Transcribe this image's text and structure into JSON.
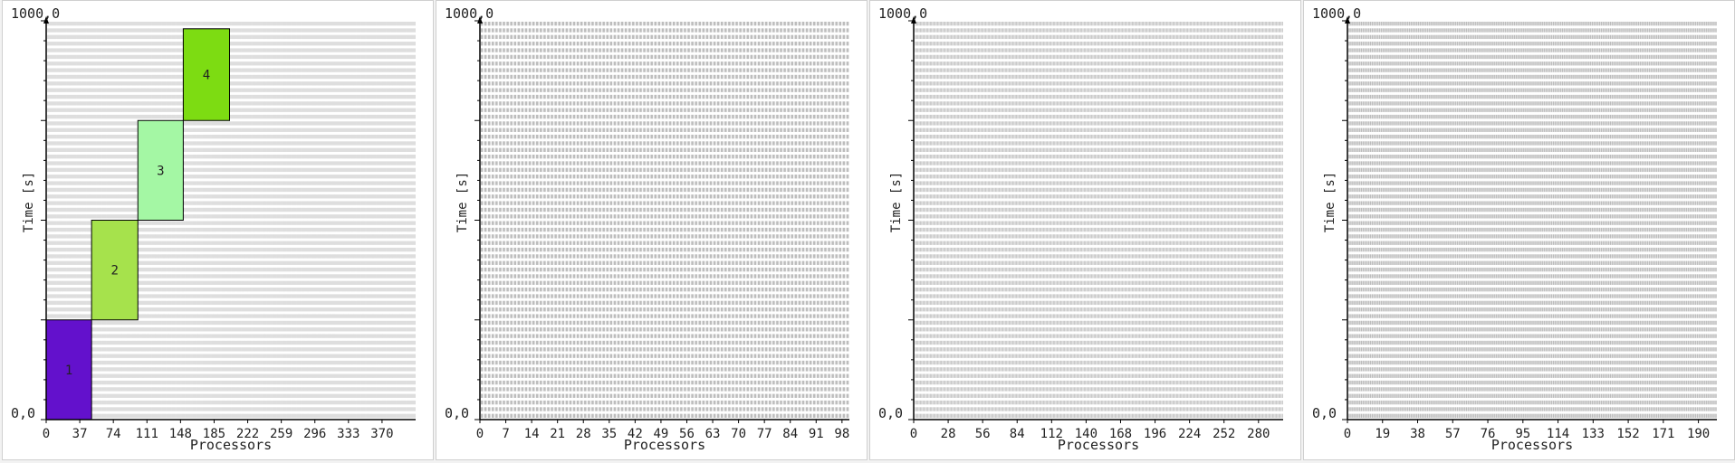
{
  "chart_data": [
    {
      "type": "gantt",
      "ymax_label": "1000,0",
      "ymin_label": "0,0",
      "ylabel": "Time [s]",
      "xlabel": "Processors",
      "processors": 407,
      "ylim": [
        0,
        1000
      ],
      "x_ticks": [
        "0",
        "37",
        "74",
        "111",
        "148",
        "185",
        "222",
        "259",
        "296",
        "333",
        "370"
      ],
      "x_tick_step": 37,
      "row_count": 60,
      "tasks": [
        {
          "label": "1",
          "proc_start": 0,
          "proc_end": 50,
          "t_start": 0,
          "t_end": 250,
          "color": "#6311cc",
          "text_color": "#ffffff"
        },
        {
          "label": "2",
          "proc_start": 50,
          "proc_end": 101,
          "t_start": 250,
          "t_end": 500,
          "color": "#a6e24c",
          "text_color": "#ffffff"
        },
        {
          "label": "3",
          "proc_start": 101,
          "proc_end": 151,
          "t_start": 500,
          "t_end": 750,
          "color": "#a4f7a4",
          "text_color": "#ffffff"
        },
        {
          "label": "4",
          "proc_start": 151,
          "proc_end": 202,
          "t_start": 750,
          "t_end": 980,
          "color": "#7ddc12",
          "text_color": "#ffffff"
        }
      ]
    },
    {
      "type": "gantt",
      "ymax_label": "1000,0",
      "ymin_label": "0,0",
      "ylabel": "Time [s]",
      "xlabel": "Processors",
      "processors": 100,
      "ylim": [
        0,
        1000
      ],
      "x_ticks": [
        "0",
        "7",
        "14",
        "21",
        "28",
        "35",
        "42",
        "49",
        "56",
        "63",
        "70",
        "77",
        "84",
        "91",
        "98"
      ],
      "x_tick_step": 7,
      "row_count": 60,
      "tasks": []
    },
    {
      "type": "gantt",
      "ymax_label": "1000,0",
      "ymin_label": "0,0",
      "ylabel": "Time [s]",
      "xlabel": "Processors",
      "processors": 300,
      "ylim": [
        0,
        1000
      ],
      "x_ticks": [
        "0",
        "28",
        "56",
        "84",
        "112",
        "140",
        "168",
        "196",
        "224",
        "252",
        "280"
      ],
      "x_tick_step": 28,
      "row_count": 60,
      "tasks": []
    },
    {
      "type": "gantt",
      "ymax_label": "1000,0",
      "ymin_label": "0,0",
      "ylabel": "Time [s]",
      "xlabel": "Processors",
      "processors": 200,
      "ylim": [
        0,
        1000
      ],
      "x_ticks": [
        "0",
        "19",
        "38",
        "57",
        "76",
        "95",
        "114",
        "133",
        "152",
        "171",
        "190"
      ],
      "x_tick_step": 19,
      "row_count": 60,
      "tasks": []
    }
  ]
}
